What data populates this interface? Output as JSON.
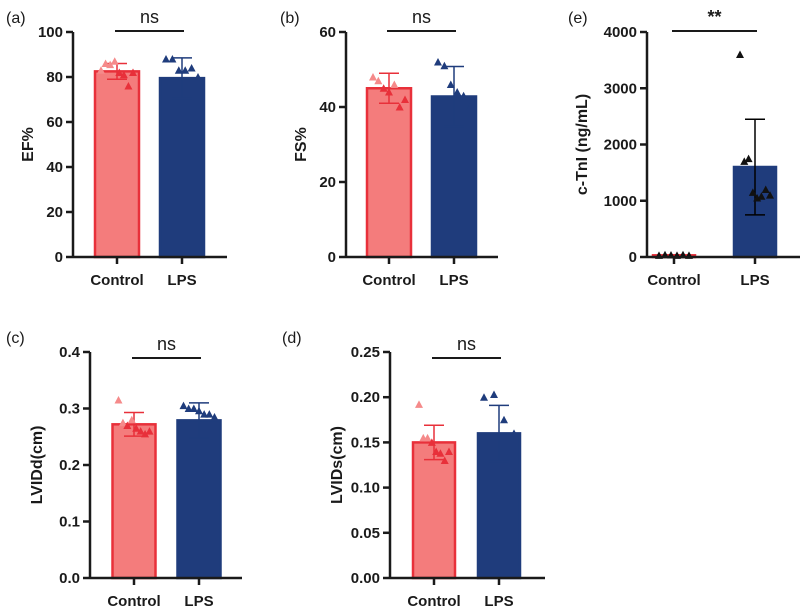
{
  "colors": {
    "control_fill": "#f47c7c",
    "control_edge": "#e8303a",
    "lps_fill": "#1f3c7c",
    "lps_edge": "#1f3c7c",
    "axis": "#1a1a1a"
  },
  "chart_data": [
    {
      "panel": "(a)",
      "type": "bar",
      "ylabel": "EF%",
      "categories": [
        "Control",
        "LPS"
      ],
      "ylim": [
        0,
        100
      ],
      "yticks": [
        "0",
        "20",
        "40",
        "60",
        "80",
        "100"
      ],
      "significance": "ns",
      "means": [
        82.5,
        79.5
      ],
      "sd": [
        3.5,
        9
      ],
      "points": [
        [
          83,
          86,
          85.5,
          87,
          82,
          81,
          76,
          82
        ],
        [
          88,
          88,
          83,
          83,
          84,
          80
        ]
      ]
    },
    {
      "panel": "(b)",
      "type": "bar",
      "ylabel": "FS%",
      "categories": [
        "Control",
        "LPS"
      ],
      "ylim": [
        0,
        60
      ],
      "yticks": [
        "0",
        "20",
        "40",
        "60"
      ],
      "significance": "ns",
      "means": [
        45,
        42.8
      ],
      "sd": [
        4,
        8
      ],
      "points": [
        [
          48,
          47,
          45,
          44,
          46,
          40,
          42
        ],
        [
          52,
          51,
          46,
          44,
          43,
          40
        ]
      ]
    },
    {
      "panel": "(e)",
      "type": "bar",
      "ylabel": "c-TnI (ng/mL)",
      "categories": [
        "Control",
        "LPS"
      ],
      "ylim": [
        0,
        4000
      ],
      "yticks": [
        "0",
        "1000",
        "2000",
        "3000",
        "4000"
      ],
      "significance": "**",
      "means": [
        30,
        1600
      ],
      "sd": [
        10,
        850
      ],
      "points": [
        [
          30,
          40,
          35,
          30,
          40,
          30
        ],
        [
          3600,
          1700,
          1750,
          1150,
          1050,
          1080,
          1200,
          1100
        ]
      ]
    },
    {
      "panel": "(c)",
      "type": "bar",
      "ylabel": "LVIDd(cm)",
      "categories": [
        "Control",
        "LPS"
      ],
      "ylim": [
        0,
        0.4
      ],
      "yticks": [
        "0.0",
        "0.1",
        "0.2",
        "0.3",
        "0.4"
      ],
      "significance": "ns",
      "means": [
        0.272,
        0.279
      ],
      "sd": [
        0.021,
        0.031
      ],
      "points": [
        [
          0.315,
          0.275,
          0.27,
          0.28,
          0.265,
          0.26,
          0.255,
          0.26
        ],
        [
          0.305,
          0.3,
          0.3,
          0.296,
          0.29,
          0.29,
          0.285
        ]
      ]
    },
    {
      "panel": "(d)",
      "type": "bar",
      "ylabel": "LVIDs(cm)",
      "categories": [
        "Control",
        "LPS"
      ],
      "ylim": [
        0,
        0.25
      ],
      "yticks": [
        "0.00",
        "0.05",
        "0.10",
        "0.15",
        "0.20",
        "0.25"
      ],
      "significance": "ns",
      "means": [
        0.15,
        0.16
      ],
      "sd": [
        0.019,
        0.031
      ],
      "points": [
        [
          0.192,
          0.155,
          0.155,
          0.15,
          0.14,
          0.138,
          0.13,
          0.14
        ],
        [
          0.2,
          0.203,
          0.175,
          0.16
        ]
      ]
    }
  ]
}
